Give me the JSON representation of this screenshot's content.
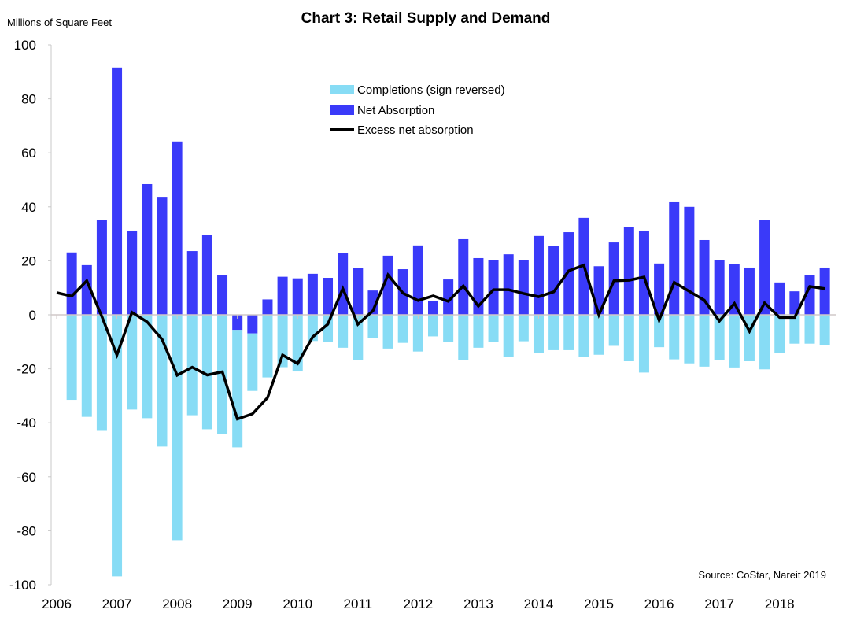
{
  "chart_data": {
    "type": "bar",
    "title": "Chart 3: Retail Supply and Demand",
    "ylabel": "Millions of Square Feet",
    "xlabel": "",
    "source": "Source: CoStar, Nareit 2019",
    "ylim": [
      -100,
      100
    ],
    "yticks": [
      100,
      80,
      60,
      40,
      20,
      0,
      -20,
      -40,
      -60,
      -80,
      -100
    ],
    "xtick_labels": [
      "2006",
      "2007",
      "2008",
      "2009",
      "2010",
      "2011",
      "2012",
      "2013",
      "2014",
      "2015",
      "2016",
      "2017",
      "2018"
    ],
    "x_period": "quarterly, 2006 Q1 – 2018 Q4",
    "grid": false,
    "legend_position": "top-center",
    "series": [
      {
        "name": "Completions (sign reversed)",
        "kind": "stacked-bar",
        "color": "#87DCF5",
        "values": [
          null,
          -31.5,
          -37.8,
          -43,
          -96.9,
          -35.1,
          -38.3,
          -48.8,
          -83.5,
          -37.2,
          -42.4,
          -44.2,
          -43.5,
          -21.3,
          -23.2,
          -19.4,
          -21,
          -9.7,
          -10.2,
          -12.2,
          -16.9,
          -8.7,
          -12.5,
          -10.4,
          -13.6,
          -8,
          -10.1,
          -16.9,
          -12.2,
          -10.1,
          -15.7,
          -9.8,
          -14.2,
          -13.1,
          -13.1,
          -15.5,
          -14.8,
          -11.5,
          -17.2,
          -21.4,
          -12,
          -16.5,
          -18,
          -19.2,
          -16.9,
          -19.5,
          -17.2,
          -20.2,
          -14.2,
          -10.7,
          -10.7,
          -11.3
        ]
      },
      {
        "name": "Net Absorption",
        "kind": "stacked-bar",
        "color": "#3A3AF9",
        "values": [
          null,
          23.1,
          18.4,
          35.2,
          91.6,
          31.2,
          48.4,
          43.7,
          64.2,
          23.6,
          29.7,
          14.6,
          -5.6,
          -6.9,
          5.7,
          14.1,
          13.5,
          15.2,
          13.7,
          23,
          17.2,
          9,
          21.9,
          16.9,
          25.7,
          5,
          13.1,
          28,
          21,
          20.4,
          22.4,
          20.4,
          29.2,
          25.4,
          30.6,
          35.9,
          18,
          26.8,
          32.4,
          31.2,
          19,
          41.7,
          40,
          27.7,
          20.4,
          18.7,
          17.5,
          35,
          12,
          8.7,
          14.6,
          17.5
        ]
      },
      {
        "name": "Excess net absorption",
        "kind": "line",
        "color": "#000000",
        "values": [
          8.2,
          6.9,
          12.6,
          -0.6,
          -14.9,
          0.9,
          -2.6,
          -9.1,
          -22.4,
          -19.4,
          -22.3,
          -21.1,
          -38.6,
          -36.7,
          -30.7,
          -14.9,
          -18.1,
          -8.2,
          -3.5,
          9.7,
          -3.5,
          1.5,
          14.8,
          8,
          5.3,
          7,
          5,
          10.7,
          3.2,
          9.3,
          9.3,
          7.9,
          6.7,
          8.5,
          16.3,
          18.4,
          0,
          12.6,
          12.8,
          14,
          -2,
          12,
          8.7,
          5.4,
          -2.3,
          4.2,
          -6.1,
          4.4,
          -1,
          -1,
          10.5,
          9.7
        ]
      }
    ]
  }
}
